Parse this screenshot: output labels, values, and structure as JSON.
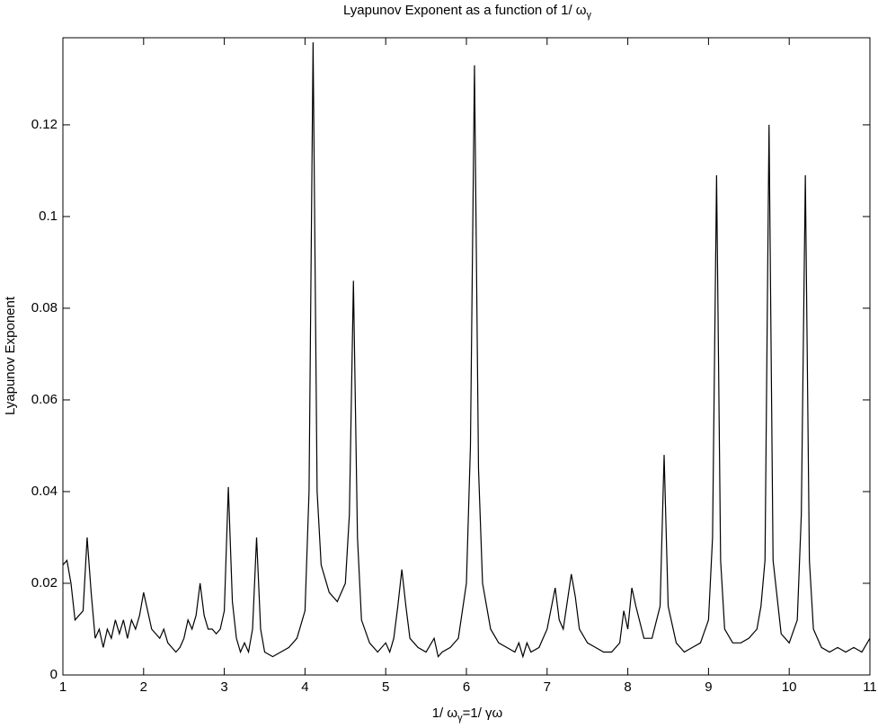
{
  "chart_data": {
    "type": "line",
    "title": "Lyapunov Exponent as a function of 1/ ω",
    "title_subscript": "γ",
    "xlabel": "1/ ω",
    "xlabel_subscript": "γ",
    "xlabel_rest": "=1/ γω",
    "ylabel": "Lyapunov Exponent",
    "xlim": [
      1,
      11
    ],
    "xticks": [
      1,
      2,
      3,
      4,
      5,
      6,
      7,
      8,
      9,
      10,
      11
    ],
    "ylim": [
      0,
      0.139
    ],
    "yticks": [
      0,
      0.02,
      0.04,
      0.06,
      0.08,
      0.1,
      0.12
    ],
    "grid": false,
    "color": "#000000",
    "x": [
      1.0,
      1.05,
      1.1,
      1.15,
      1.2,
      1.25,
      1.3,
      1.35,
      1.4,
      1.45,
      1.5,
      1.55,
      1.6,
      1.65,
      1.7,
      1.75,
      1.8,
      1.85,
      1.9,
      1.95,
      2.0,
      2.05,
      2.1,
      2.15,
      2.2,
      2.25,
      2.3,
      2.35,
      2.4,
      2.45,
      2.5,
      2.55,
      2.6,
      2.65,
      2.7,
      2.75,
      2.8,
      2.85,
      2.9,
      2.95,
      3.0,
      3.05,
      3.1,
      3.15,
      3.2,
      3.25,
      3.3,
      3.35,
      3.4,
      3.45,
      3.5,
      3.6,
      3.7,
      3.8,
      3.9,
      4.0,
      4.05,
      4.1,
      4.15,
      4.2,
      4.3,
      4.4,
      4.5,
      4.55,
      4.6,
      4.65,
      4.7,
      4.8,
      4.9,
      5.0,
      5.05,
      5.1,
      5.15,
      5.2,
      5.25,
      5.3,
      5.4,
      5.5,
      5.6,
      5.65,
      5.7,
      5.8,
      5.9,
      6.0,
      6.05,
      6.1,
      6.15,
      6.2,
      6.3,
      6.4,
      6.5,
      6.6,
      6.65,
      6.7,
      6.75,
      6.8,
      6.9,
      7.0,
      7.1,
      7.15,
      7.2,
      7.3,
      7.35,
      7.4,
      7.5,
      7.6,
      7.7,
      7.8,
      7.9,
      7.95,
      8.0,
      8.05,
      8.1,
      8.2,
      8.3,
      8.4,
      8.45,
      8.5,
      8.6,
      8.7,
      8.8,
      8.9,
      9.0,
      9.05,
      9.1,
      9.15,
      9.2,
      9.3,
      9.4,
      9.5,
      9.6,
      9.65,
      9.7,
      9.75,
      9.8,
      9.9,
      10.0,
      10.1,
      10.15,
      10.2,
      10.25,
      10.3,
      10.4,
      10.5,
      10.6,
      10.7,
      10.8,
      10.9,
      11.0
    ],
    "values": [
      0.024,
      0.025,
      0.02,
      0.012,
      0.013,
      0.014,
      0.03,
      0.018,
      0.008,
      0.01,
      0.006,
      0.01,
      0.008,
      0.012,
      0.009,
      0.012,
      0.008,
      0.012,
      0.01,
      0.013,
      0.018,
      0.014,
      0.01,
      0.009,
      0.008,
      0.01,
      0.007,
      0.006,
      0.005,
      0.006,
      0.008,
      0.012,
      0.01,
      0.013,
      0.02,
      0.013,
      0.01,
      0.01,
      0.009,
      0.01,
      0.014,
      0.041,
      0.016,
      0.008,
      0.005,
      0.007,
      0.005,
      0.01,
      0.03,
      0.01,
      0.005,
      0.004,
      0.005,
      0.006,
      0.008,
      0.014,
      0.04,
      0.138,
      0.04,
      0.024,
      0.018,
      0.016,
      0.02,
      0.035,
      0.086,
      0.03,
      0.012,
      0.007,
      0.005,
      0.007,
      0.005,
      0.008,
      0.015,
      0.023,
      0.015,
      0.008,
      0.006,
      0.005,
      0.008,
      0.004,
      0.005,
      0.006,
      0.008,
      0.02,
      0.05,
      0.133,
      0.045,
      0.02,
      0.01,
      0.007,
      0.006,
      0.005,
      0.007,
      0.004,
      0.007,
      0.005,
      0.006,
      0.01,
      0.019,
      0.012,
      0.01,
      0.022,
      0.017,
      0.01,
      0.007,
      0.006,
      0.005,
      0.005,
      0.007,
      0.014,
      0.01,
      0.019,
      0.015,
      0.008,
      0.008,
      0.015,
      0.048,
      0.015,
      0.007,
      0.005,
      0.006,
      0.007,
      0.012,
      0.03,
      0.109,
      0.025,
      0.01,
      0.007,
      0.007,
      0.008,
      0.01,
      0.015,
      0.025,
      0.12,
      0.025,
      0.009,
      0.007,
      0.012,
      0.035,
      0.109,
      0.025,
      0.01,
      0.006,
      0.005,
      0.006,
      0.005,
      0.006,
      0.005,
      0.008
    ]
  }
}
